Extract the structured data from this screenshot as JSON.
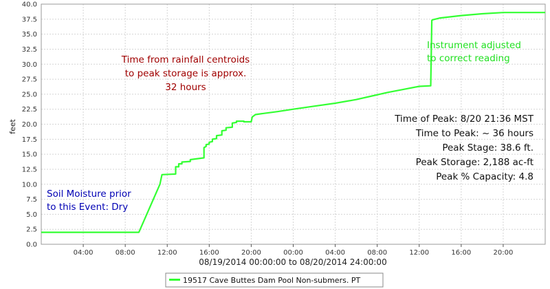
{
  "chart_data": {
    "type": "line",
    "xlabel": "08/19/2014 00:00:00 to 08/20/2014 24:00:00",
    "ylabel": "feet",
    "xlim": [
      0,
      48
    ],
    "ylim": [
      0,
      40
    ],
    "grid": true,
    "legend_position": "bottom",
    "x_tick_labels": [
      "04:00",
      "08:00",
      "12:00",
      "16:00",
      "20:00",
      "00:00",
      "04:00",
      "08:00",
      "12:00",
      "16:00",
      "20:00"
    ],
    "x_tick_hours": [
      4,
      8,
      12,
      16,
      20,
      24,
      28,
      32,
      36,
      40,
      44
    ],
    "y_ticks": [
      "0.0",
      "2.5",
      "5.0",
      "7.5",
      "10.0",
      "12.5",
      "15.0",
      "17.5",
      "20.0",
      "22.5",
      "25.0",
      "27.5",
      "30.0",
      "32.5",
      "35.0",
      "37.5",
      "40.0"
    ],
    "series": [
      {
        "name": "19517 Cave Buttes Dam Pool Non-submers. PT",
        "color": "#33ff33",
        "x": [
          0,
          9.3,
          11.3,
          11.5,
          12.8,
          12.8,
          13.1,
          13.1,
          13.4,
          13.4,
          14.2,
          14.2,
          15.5,
          15.5,
          15.7,
          15.7,
          16.0,
          16.0,
          16.3,
          16.3,
          16.7,
          16.7,
          17.2,
          17.2,
          17.6,
          17.6,
          18.2,
          18.2,
          18.6,
          18.6,
          19.3,
          19.3,
          20.0,
          20.1,
          20.4,
          21.2,
          22.5,
          24.0,
          26.0,
          28.0,
          30.0,
          31.5,
          33.0,
          34.5,
          36.0,
          37.1,
          37.2,
          37.3,
          38.0,
          40.0,
          42.0,
          44.0,
          46.0,
          48.0
        ],
        "y": [
          2.0,
          2.0,
          10.0,
          11.6,
          11.7,
          12.9,
          12.9,
          13.4,
          13.4,
          13.7,
          13.8,
          14.1,
          14.4,
          16.1,
          16.3,
          16.6,
          16.7,
          17.0,
          17.1,
          17.5,
          17.6,
          18.1,
          18.2,
          18.9,
          19.0,
          19.4,
          19.5,
          20.2,
          20.3,
          20.5,
          20.5,
          20.4,
          20.4,
          21.2,
          21.6,
          21.8,
          22.1,
          22.5,
          23.0,
          23.5,
          24.1,
          24.7,
          25.3,
          25.8,
          26.3,
          26.4,
          37.3,
          37.4,
          37.7,
          38.1,
          38.4,
          38.6,
          38.6,
          38.6
        ]
      }
    ],
    "annotations": [
      {
        "id": "rainfall",
        "color": "#a00000",
        "lines": [
          "Time from rainfall centroids",
          "to peak storage is approx.",
          "32 hours"
        ]
      },
      {
        "id": "soil",
        "color": "#0000b4",
        "lines": [
          "Soil Moisture prior",
          "to this Event: Dry"
        ]
      },
      {
        "id": "instrument",
        "color": "#21e021",
        "lines": [
          "Instrument adjusted",
          "to correct reading"
        ]
      },
      {
        "id": "peak",
        "color": "#111111",
        "lines": [
          "Time of Peak: 8/20 21:36 MST",
          "Time to Peak: ~ 36 hours",
          "Peak Stage: 38.6 ft.",
          "Peak Storage: 2,188 ac-ft",
          "Peak % Capacity: 4.8"
        ]
      }
    ]
  }
}
